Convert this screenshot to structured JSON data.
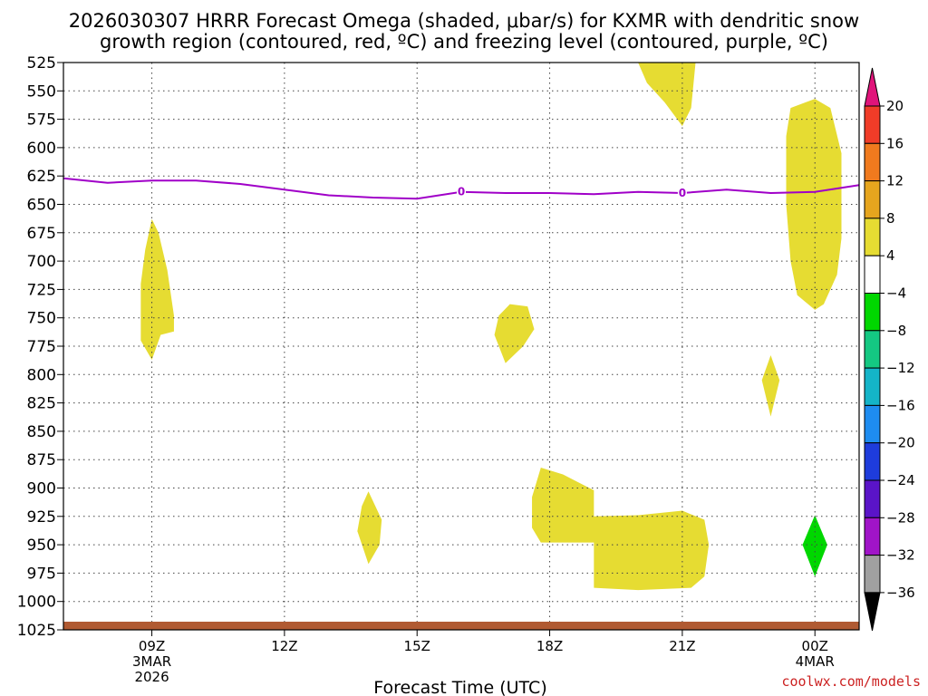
{
  "chart_data": {
    "type": "heatmap",
    "title_lines": [
      "2026030307 HRRR Forecast Omega (shaded, μbar/s) for KXMR with dendritic snow",
      "growth region (contoured, red, ºC) and freezing level (contoured, purple, ºC)"
    ],
    "xlabel": "Forecast Time (UTC)",
    "credit": "coolwx.com/models",
    "x_unit": "hours since 2026-03-03 07Z",
    "xlim": [
      0,
      18
    ],
    "x_ticks": [
      {
        "value": 2,
        "line1": "09Z",
        "line2": "3MAR",
        "line3": "2026"
      },
      {
        "value": 5,
        "line1": "12Z",
        "line2": "",
        "line3": ""
      },
      {
        "value": 8,
        "line1": "15Z",
        "line2": "",
        "line3": ""
      },
      {
        "value": 11,
        "line1": "18Z",
        "line2": "",
        "line3": ""
      },
      {
        "value": 14,
        "line1": "21Z",
        "line2": "",
        "line3": ""
      },
      {
        "value": 17,
        "line1": "00Z",
        "line2": "4MAR",
        "line3": ""
      }
    ],
    "y_unit": "hPa",
    "ylim": [
      525,
      1025
    ],
    "y_ticks": [
      "525",
      "550",
      "575",
      "600",
      "625",
      "650",
      "675",
      "700",
      "725",
      "750",
      "775",
      "800",
      "825",
      "850",
      "875",
      "900",
      "925",
      "950",
      "975",
      "1000",
      "1025"
    ],
    "grid": true,
    "freezing_level": {
      "label": "0",
      "color": "#a000c8",
      "label_positions": [
        9,
        14
      ],
      "points": [
        [
          0,
          627
        ],
        [
          1,
          631
        ],
        [
          2,
          629
        ],
        [
          3,
          629
        ],
        [
          4,
          632
        ],
        [
          5,
          637
        ],
        [
          6,
          642
        ],
        [
          7,
          644
        ],
        [
          8,
          645
        ],
        [
          9,
          639
        ],
        [
          10,
          640
        ],
        [
          11,
          640
        ],
        [
          12,
          641
        ],
        [
          13,
          639
        ],
        [
          14,
          640
        ],
        [
          15,
          637
        ],
        [
          16,
          640
        ],
        [
          17,
          639
        ],
        [
          18,
          633
        ]
      ]
    },
    "omega_regions": [
      {
        "range": "4 to 8",
        "color": "#e6dc32",
        "points": [
          [
            2.0,
            663
          ],
          [
            2.15,
            675
          ],
          [
            2.35,
            708
          ],
          [
            2.5,
            748
          ],
          [
            2.5,
            762
          ],
          [
            2.2,
            765
          ],
          [
            2.0,
            787
          ],
          [
            1.75,
            770
          ],
          [
            1.75,
            720
          ],
          [
            1.85,
            690
          ]
        ]
      },
      {
        "range": "4 to 8",
        "color": "#e6dc32",
        "points": [
          [
            13.0,
            525
          ],
          [
            14.3,
            525
          ],
          [
            14.2,
            565
          ],
          [
            14.0,
            581
          ],
          [
            13.6,
            560
          ],
          [
            13.2,
            543
          ]
        ]
      },
      {
        "range": "4 to 8",
        "color": "#e6dc32",
        "points": [
          [
            17.0,
            557
          ],
          [
            17.35,
            565
          ],
          [
            17.6,
            605
          ],
          [
            17.6,
            680
          ],
          [
            17.5,
            712
          ],
          [
            17.2,
            738
          ],
          [
            17.0,
            743
          ],
          [
            16.6,
            730
          ],
          [
            16.45,
            700
          ],
          [
            16.35,
            650
          ],
          [
            16.35,
            590
          ],
          [
            16.45,
            565
          ]
        ]
      },
      {
        "range": "4 to 8",
        "color": "#e6dc32",
        "points": [
          [
            10.1,
            738
          ],
          [
            10.5,
            740
          ],
          [
            10.65,
            760
          ],
          [
            10.4,
            775
          ],
          [
            10.0,
            790
          ],
          [
            9.75,
            765
          ],
          [
            9.85,
            748
          ]
        ]
      },
      {
        "range": "4 to 8",
        "color": "#e6dc32",
        "points": [
          [
            16.0,
            783
          ],
          [
            16.2,
            805
          ],
          [
            16.0,
            837
          ],
          [
            15.8,
            805
          ]
        ]
      },
      {
        "range": "4 to 8",
        "color": "#e6dc32",
        "points": [
          [
            6.9,
            903
          ],
          [
            7.2,
            928
          ],
          [
            7.15,
            950
          ],
          [
            6.9,
            967
          ],
          [
            6.65,
            938
          ],
          [
            6.75,
            916
          ]
        ]
      },
      {
        "range": "4 to 8",
        "color": "#e6dc32",
        "points": [
          [
            10.8,
            882
          ],
          [
            11.3,
            888
          ],
          [
            12.0,
            902
          ],
          [
            12.0,
            925
          ],
          [
            13.0,
            924
          ],
          [
            14.0,
            920
          ],
          [
            14.5,
            928
          ],
          [
            14.6,
            950
          ],
          [
            14.5,
            978
          ],
          [
            14.2,
            988
          ],
          [
            13.0,
            990
          ],
          [
            12.0,
            988
          ],
          [
            12.0,
            948
          ],
          [
            10.8,
            948
          ],
          [
            10.6,
            935
          ],
          [
            10.6,
            908
          ]
        ]
      },
      {
        "range": "-8 to -4",
        "color": "#00d700",
        "points": [
          [
            17.0,
            924
          ],
          [
            17.28,
            950
          ],
          [
            17.0,
            978
          ],
          [
            16.72,
            950
          ]
        ]
      }
    ],
    "surface_color": "#b05a32",
    "colorbar": {
      "labels": [
        "20",
        "16",
        "12",
        "8",
        "4",
        "−4",
        "−8",
        "−12",
        "−16",
        "−20",
        "−24",
        "−28",
        "−32",
        "−36"
      ],
      "colors": [
        "#e0147a",
        "#f03c28",
        "#f07a1e",
        "#e6a51e",
        "#e6dc32",
        "#ffffff",
        "#00d700",
        "#14c882",
        "#14b4c8",
        "#1e8cf0",
        "#1e3cdc",
        "#5a14c8",
        "#a014c8",
        "#a0a0a0",
        "#000000"
      ]
    }
  }
}
